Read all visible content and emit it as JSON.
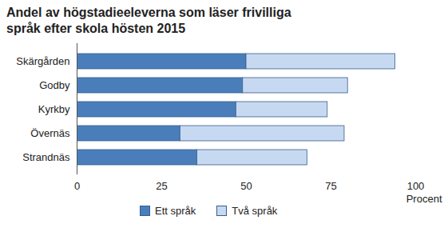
{
  "chart_data": {
    "type": "bar",
    "orientation": "horizontal",
    "stacked": true,
    "title": "Andel av högstadieeleverna som läser frivilliga språk efter skola hösten 2015",
    "x_label": "Procent",
    "categories": [
      "Skärgården",
      "Godby",
      "Kyrkby",
      "Övernäs",
      "Strandnäs"
    ],
    "series": [
      {
        "name": "Ett språk",
        "color": "#4a7ebb",
        "values": [
          50,
          49,
          47,
          30.5,
          35.5
        ]
      },
      {
        "name": "Två språk",
        "color": "#c6d9f1",
        "values": [
          44,
          31,
          27,
          48.5,
          32.5
        ]
      }
    ],
    "xlim": [
      0,
      100
    ],
    "xticks": [
      0,
      25,
      50,
      75,
      100
    ],
    "grid": false,
    "legend": "bottom"
  }
}
